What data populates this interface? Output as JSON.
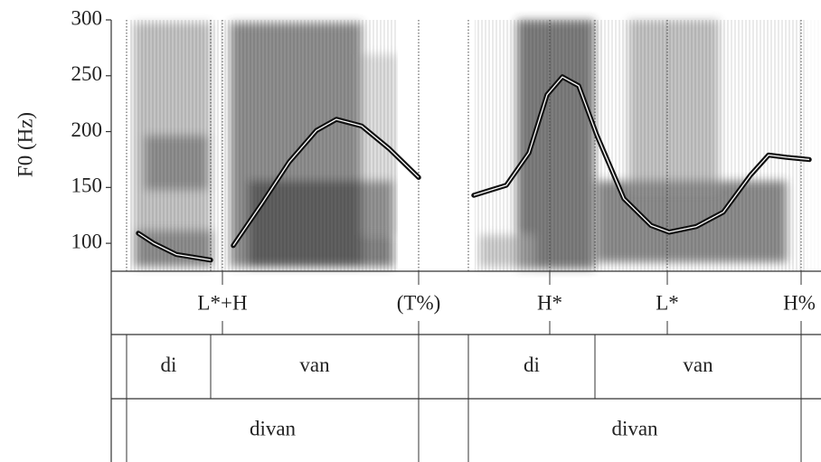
{
  "chart_data": {
    "type": "line",
    "y_label": "F0 (Hz)",
    "ylim": [
      75,
      300
    ],
    "yticks": [
      100,
      150,
      200,
      250,
      300
    ],
    "xlim": [
      0,
      1.57
    ],
    "x": [
      0.06,
      0.094,
      0.144,
      0.22,
      null,
      0.27,
      0.334,
      0.394,
      0.454,
      0.498,
      0.554,
      0.614,
      0.68,
      null,
      0.802,
      0.874,
      0.924,
      0.964,
      0.998,
      1.034,
      1.074,
      1.134,
      1.194,
      1.234,
      1.294,
      1.354,
      1.414,
      1.454,
      1.494,
      1.544
    ],
    "series": [
      {
        "color": "#111111",
        "values": [
          109,
          100,
          90,
          85,
          null,
          98,
          136,
          173,
          201,
          211,
          205,
          185,
          159,
          null,
          143,
          152,
          181,
          233,
          249,
          241,
          197,
          140,
          116,
          110,
          115,
          128,
          161,
          179,
          177,
          175
        ]
      }
    ],
    "tones": {
      "x": [
        0.246,
        0.68,
        0.97,
        1.23,
        1.526
      ],
      "labels": [
        "L*+H",
        "(T%)",
        "H*",
        "L*",
        "H%"
      ]
    },
    "syllables": {
      "start": [
        0.034,
        0.22,
        0.79,
        1.07
      ],
      "end": [
        0.22,
        0.68,
        1.07,
        1.526
      ],
      "labels": [
        "di",
        "van",
        "di",
        "van"
      ]
    },
    "words": {
      "start": [
        0.034,
        0.79
      ],
      "end": [
        0.68,
        1.526
      ],
      "labels": [
        "divan",
        "divan"
      ]
    }
  }
}
